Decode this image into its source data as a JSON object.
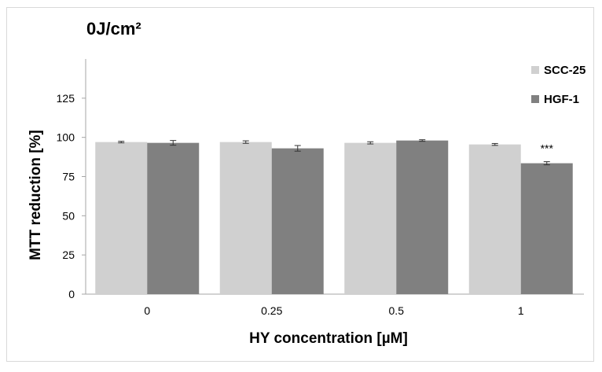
{
  "chart_data": {
    "type": "bar",
    "title": "0J/cm²",
    "xlabel": "HY concentration [µM]",
    "ylabel": "MTT reduction [%]",
    "categories": [
      "0",
      "0.25",
      "0.5",
      "1"
    ],
    "ylim": [
      0,
      150
    ],
    "yticks": [
      "0",
      "25",
      "50",
      "75",
      "100",
      "125"
    ],
    "grid": false,
    "legend_position": "top-right",
    "series": [
      {
        "name": "SCC-25",
        "color": "#d0d0d0",
        "values": [
          97,
          97,
          96.5,
          95.5
        ],
        "errors": [
          0.5,
          0.8,
          0.7,
          0.6
        ]
      },
      {
        "name": "HGF-1",
        "color": "#808080",
        "values": [
          96.5,
          93,
          98,
          83.5
        ],
        "errors": [
          1.5,
          1.8,
          0.5,
          1.0
        ]
      }
    ],
    "annotations": [
      {
        "category": "1",
        "series": "HGF-1",
        "text": "***"
      }
    ]
  }
}
